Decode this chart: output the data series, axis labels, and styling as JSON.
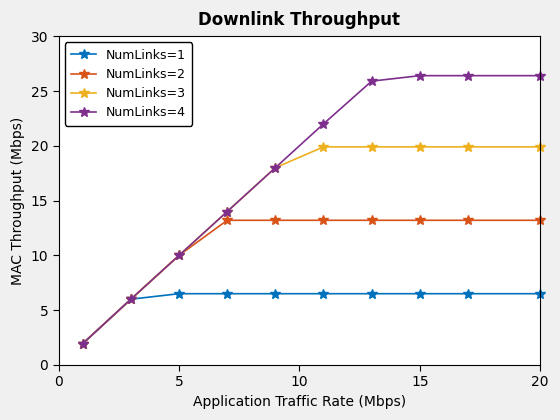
{
  "title": "Downlink Throughput",
  "xlabel": "Application Traffic Rate (Mbps)",
  "ylabel": "MAC Throughput (Mbps)",
  "xlim": [
    0,
    20
  ],
  "ylim": [
    0,
    30
  ],
  "xticks": [
    0,
    5,
    10,
    15,
    20
  ],
  "yticks": [
    0,
    5,
    10,
    15,
    20,
    25,
    30
  ],
  "series": [
    {
      "label": "NumLinks=1",
      "color": "#0072BD",
      "x": [
        1,
        3,
        5,
        7,
        9,
        11,
        13,
        15,
        17,
        20
      ],
      "y": [
        1.95,
        6.0,
        6.5,
        6.5,
        6.5,
        6.5,
        6.5,
        6.5,
        6.5,
        6.5
      ]
    },
    {
      "label": "NumLinks=2",
      "color": "#D95319",
      "x": [
        1,
        3,
        5,
        7,
        9,
        11,
        13,
        15,
        17,
        20
      ],
      "y": [
        1.95,
        6.0,
        10.0,
        13.2,
        13.2,
        13.2,
        13.2,
        13.2,
        13.2,
        13.2
      ]
    },
    {
      "label": "NumLinks=3",
      "color": "#EDB120",
      "x": [
        1,
        3,
        5,
        7,
        9,
        11,
        13,
        15,
        17,
        20
      ],
      "y": [
        1.95,
        6.0,
        10.0,
        14.0,
        18.0,
        19.9,
        19.9,
        19.9,
        19.9,
        19.9
      ]
    },
    {
      "label": "NumLinks=4",
      "color": "#7E2F8E",
      "x": [
        1,
        3,
        5,
        7,
        9,
        11,
        13,
        15,
        17,
        20
      ],
      "y": [
        1.95,
        6.0,
        10.0,
        14.0,
        18.0,
        22.0,
        25.9,
        26.4,
        26.4,
        26.4
      ]
    }
  ],
  "marker": "*",
  "markersize": 7,
  "linewidth": 1.2,
  "legend_loc": "upper left",
  "figure_facecolor": "#f0f0f0",
  "axes_facecolor": "#ffffff",
  "title_fontsize": 12,
  "label_fontsize": 10,
  "tick_fontsize": 10,
  "legend_fontsize": 9
}
